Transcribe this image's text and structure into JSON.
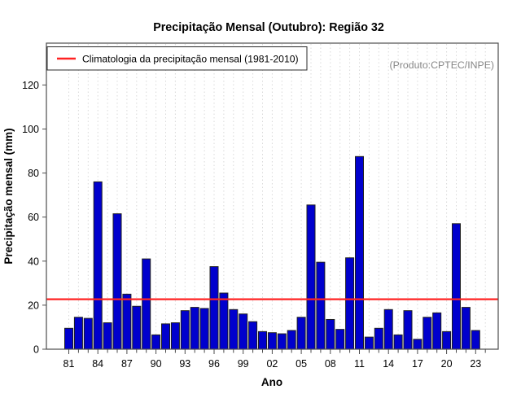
{
  "chart_data": {
    "type": "bar",
    "title": "Precipitação Mensal (Outubro): Região 32",
    "xlabel": "Ano",
    "ylabel": "Precipitação mensal (mm)",
    "watermark": "(Produto:CPTEC/INPE)",
    "legend": {
      "label": "Climatologia da precipitação mensal (1981-2010)",
      "line_color": "#ff2222"
    },
    "climatology_value": 22.7,
    "years": [
      1981,
      1982,
      1983,
      1984,
      1985,
      1986,
      1987,
      1988,
      1989,
      1990,
      1991,
      1992,
      1993,
      1994,
      1995,
      1996,
      1997,
      1998,
      1999,
      2000,
      2001,
      2002,
      2003,
      2004,
      2005,
      2006,
      2007,
      2008,
      2009,
      2010,
      2011,
      2012,
      2013,
      2014,
      2015,
      2016,
      2017,
      2018,
      2019,
      2020,
      2021,
      2022,
      2023
    ],
    "values": [
      9.5,
      14.5,
      14,
      76,
      12,
      61.5,
      25,
      19.5,
      41,
      6.5,
      11.5,
      12,
      17.5,
      19,
      18.5,
      37.5,
      25.5,
      18,
      16,
      12.5,
      8,
      7.5,
      7,
      8.5,
      14.5,
      65.5,
      39.5,
      13.5,
      9,
      41.5,
      87.5,
      5.5,
      9.5,
      18,
      6.5,
      17.5,
      4.5,
      14.5,
      16.5,
      8,
      57,
      19,
      8.5
    ],
    "yticks": [
      0,
      20,
      40,
      60,
      80,
      100,
      120
    ],
    "x_tick_labels": [
      "81",
      "84",
      "87",
      "90",
      "93",
      "96",
      "99",
      "02",
      "05",
      "08",
      "11",
      "14",
      "17",
      "20",
      "23"
    ],
    "x_label_step": 3,
    "axis_tick_year_range": [
      1981,
      2024
    ],
    "ylim": [
      0,
      139
    ],
    "grid": "vertical-dashed",
    "legend_position": "top-left",
    "colors": {
      "bar_fill": "#0000cd",
      "bar_border": "#1f1f1f",
      "axis": "#4d4d4d",
      "gridline": "#d9d9d9",
      "climatology_line": "#ff2222"
    }
  }
}
